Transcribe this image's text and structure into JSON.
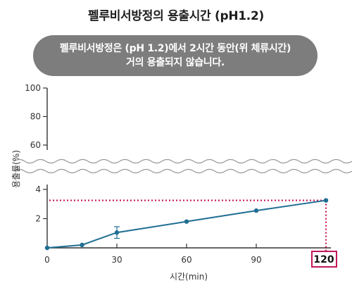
{
  "title": "펠루비서방정의 용출시간 (pH1.2)",
  "banner": {
    "line1": "펠루비서방정은 (pH 1.2)에서 2시간 동안(위 체류시간)",
    "line2": "거의 용출되지 않습니다."
  },
  "colors": {
    "series": "#1f6e93",
    "highlight": "#c2185b",
    "banner_bg": "#7d7d7d"
  },
  "chart_data": {
    "type": "line",
    "title": "펠루비서방정의 용출시간 (pH1.2)",
    "xlabel": "시간(min)",
    "ylabel": "용출률(%)",
    "xlim": [
      0,
      120
    ],
    "x_ticks": [
      "0",
      "30",
      "60",
      "90"
    ],
    "x_highlight_tick": "120",
    "y_ticks_upper": [
      "100",
      "80",
      "60"
    ],
    "y_ticks_lower": [
      "4",
      "2"
    ],
    "axis_break": "between 4 and 60",
    "grid": false,
    "series": [
      {
        "x": [
          0,
          15,
          30,
          60,
          90,
          120
        ],
        "y": [
          0,
          0.2,
          1.05,
          1.8,
          2.55,
          3.25
        ],
        "error": [
          0,
          0,
          0.4,
          0,
          0,
          0
        ]
      }
    ],
    "reference_lines": {
      "horizontal_at_y": 3.25,
      "vertical_at_x": 120,
      "style": "dotted"
    }
  }
}
